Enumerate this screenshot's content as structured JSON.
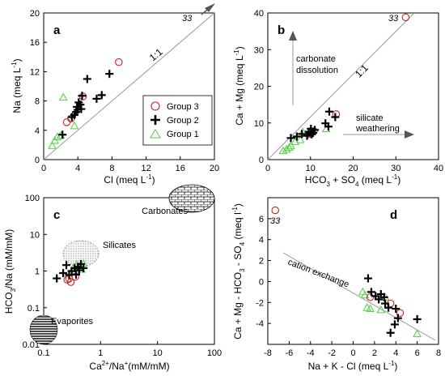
{
  "chart_data": [
    {
      "panel": "a",
      "type": "scatter",
      "xlabel": "Cl (meq L",
      "xlabel_sup": "-1",
      "xlabel_end": ")",
      "ylabel": "Na (meq L",
      "ylabel_sup": "-1",
      "ylabel_end": ")",
      "xlim": [
        0,
        20
      ],
      "ylim": [
        0,
        20
      ],
      "xticks": [
        0,
        4,
        8,
        12,
        16,
        20
      ],
      "yticks": [
        0,
        4,
        8,
        12,
        16,
        20
      ],
      "line_label": "1:1",
      "sample_label": "33",
      "series": [
        {
          "name": "Group 3",
          "marker": "circle",
          "color": "#cc2222",
          "points": [
            [
              2.7,
              5.1
            ],
            [
              4.6,
              8.6
            ],
            [
              8.8,
              13.3
            ],
            [
              3.2,
              5.6
            ]
          ]
        },
        {
          "name": "Group 2",
          "marker": "plus",
          "color": "#000000",
          "points": [
            [
              2.2,
              3.4
            ],
            [
              3.3,
              5.8
            ],
            [
              3.8,
              6.5
            ],
            [
              3.9,
              7.2
            ],
            [
              4.1,
              7.8
            ],
            [
              4.3,
              7.5
            ],
            [
              4.0,
              6.8
            ],
            [
              4.5,
              8.7
            ],
            [
              5.1,
              11.0
            ],
            [
              6.2,
              8.3
            ],
            [
              6.8,
              8.8
            ],
            [
              7.7,
              11.7
            ],
            [
              3.6,
              6.1
            ],
            [
              4.4,
              6.9
            ]
          ]
        },
        {
          "name": "Group 1",
          "marker": "triangle",
          "color": "#55cc44",
          "points": [
            [
              1.0,
              1.9
            ],
            [
              1.3,
              2.6
            ],
            [
              1.6,
              3.1
            ],
            [
              2.3,
              8.5
            ],
            [
              3.6,
              4.6
            ],
            [
              2.0,
              3.3
            ]
          ]
        }
      ],
      "legend": [
        "Group 3",
        "Group 2",
        "Group 1"
      ]
    },
    {
      "panel": "b",
      "type": "scatter",
      "xlabel": "HCO",
      "xlabel_sub1": "3",
      "xlabel_mid": " + SO",
      "xlabel_sub2": "4",
      "xlabel_end": " (meq L",
      "xlabel_sup": "-1",
      "xlabel_close": ")",
      "ylabel": "Ca + Mg  (meq L",
      "ylabel_sup": "-1",
      "ylabel_end": ")",
      "xlim": [
        0,
        40
      ],
      "ylim": [
        0,
        40
      ],
      "xticks": [
        0,
        10,
        20,
        30,
        40
      ],
      "yticks": [
        0,
        10,
        20,
        30,
        40
      ],
      "line_label": "1:1",
      "sample_label": "33",
      "annotation_carbonate_1": "carbonate",
      "annotation_carbonate_2": "dissolution",
      "annotation_silicate_1": "silicate",
      "annotation_silicate_2": "weathering",
      "series": [
        {
          "name": "Group 3",
          "marker": "circle",
          "color": "#cc2222",
          "points": [
            [
              32.3,
              38.8
            ],
            [
              16.0,
              12.4
            ],
            [
              10.8,
              7.8
            ],
            [
              9.6,
              6.9
            ]
          ]
        },
        {
          "name": "Group 2",
          "marker": "plus",
          "color": "#000000",
          "points": [
            [
              5.4,
              5.9
            ],
            [
              6.8,
              6.3
            ],
            [
              8.0,
              7.0
            ],
            [
              9.2,
              6.5
            ],
            [
              9.6,
              7.6
            ],
            [
              10.1,
              8.4
            ],
            [
              10.3,
              6.9
            ],
            [
              11.0,
              8.1
            ],
            [
              10.6,
              7.3
            ],
            [
              13.5,
              9.9
            ],
            [
              14.4,
              13.1
            ],
            [
              15.8,
              11.6
            ],
            [
              14.2,
              9.0
            ]
          ]
        },
        {
          "name": "Group 1",
          "marker": "triangle",
          "color": "#55cc44",
          "points": [
            [
              3.6,
              2.4
            ],
            [
              4.4,
              2.8
            ],
            [
              5.0,
              3.3
            ],
            [
              5.4,
              3.7
            ],
            [
              6.4,
              4.9
            ],
            [
              7.6,
              5.4
            ],
            [
              8.2,
              7.6
            ],
            [
              13.7,
              8.4
            ]
          ]
        }
      ]
    },
    {
      "panel": "c",
      "type": "scatter",
      "xscale": "log",
      "yscale": "log",
      "xlabel": "Ca",
      "xlabel_sup1": "2+",
      "xlabel_mid": "/Na",
      "xlabel_sup2": "+",
      "xlabel_end": "(mM/mM)",
      "ylabel": "HCO",
      "ylabel_sub": "3",
      "ylabel_end": "/Na (mM/mM)",
      "xlim": [
        0.1,
        100
      ],
      "ylim": [
        0.01,
        100
      ],
      "xticks": [
        "0.1",
        "1",
        "10",
        "100"
      ],
      "yticks": [
        "0.01",
        "0.1",
        "1",
        "10",
        "100"
      ],
      "region_carbonates": "Carbonates",
      "region_silicates": "Silicates",
      "region_evaporites": "Evaporites",
      "series": [
        {
          "name": "Group 3",
          "marker": "circle",
          "color": "#cc2222",
          "points": [
            [
              0.26,
              0.58
            ],
            [
              0.3,
              0.5
            ],
            [
              0.36,
              0.7
            ],
            [
              0.28,
              0.62
            ]
          ]
        },
        {
          "name": "Group 2",
          "marker": "plus",
          "color": "#000000",
          "points": [
            [
              0.17,
              0.63
            ],
            [
              0.22,
              0.88
            ],
            [
              0.25,
              1.45
            ],
            [
              0.28,
              0.78
            ],
            [
              0.31,
              1.0
            ],
            [
              0.35,
              1.2
            ],
            [
              0.37,
              0.8
            ],
            [
              0.4,
              1.3
            ],
            [
              0.42,
              1.05
            ],
            [
              0.45,
              1.55
            ],
            [
              0.5,
              1.2
            ]
          ]
        },
        {
          "name": "Group 1",
          "marker": "triangle",
          "color": "#55cc44",
          "points": [
            [
              0.33,
              1.2
            ],
            [
              0.38,
              1.5
            ],
            [
              0.42,
              1.3
            ],
            [
              0.46,
              1.1
            ],
            [
              0.5,
              1.6
            ],
            [
              0.36,
              1.0
            ]
          ]
        }
      ]
    },
    {
      "panel": "d",
      "type": "scatter",
      "xlabel": "Na + K - Cl (meq L",
      "xlabel_sup": "-1",
      "xlabel_end": ")",
      "ylabel": "Ca + Mg - HCO",
      "ylabel_sub1": "3",
      "ylabel_mid": " - SO",
      "ylabel_sub2": "4",
      "ylabel_end": " (meq l",
      "ylabel_sup": "-1",
      "ylabel_close": ")",
      "xlim": [
        -8,
        8
      ],
      "ylim": [
        -6,
        8
      ],
      "xticks": [
        -8,
        -6,
        -4,
        -2,
        0,
        2,
        4,
        6,
        8
      ],
      "yticks": [
        -4,
        -2,
        0,
        2,
        4,
        6
      ],
      "line_label": "cation exchange",
      "sample_label": "33",
      "series": [
        {
          "name": "Group 3",
          "marker": "circle",
          "color": "#cc2222",
          "points": [
            [
              -7.3,
              6.8
            ],
            [
              4.4,
              -3.0
            ],
            [
              1.6,
              -1.5
            ],
            [
              3.5,
              -2.1
            ]
          ]
        },
        {
          "name": "Group 2",
          "marker": "plus",
          "color": "#000000",
          "points": [
            [
              1.4,
              0.3
            ],
            [
              1.7,
              -1.0
            ],
            [
              2.1,
              -1.4
            ],
            [
              2.4,
              -1.7
            ],
            [
              2.6,
              -1.2
            ],
            [
              3.3,
              -2.5
            ],
            [
              3.5,
              -4.9
            ],
            [
              3.9,
              -4.1
            ],
            [
              4.2,
              -3.5
            ],
            [
              4.0,
              -2.6
            ],
            [
              6.0,
              -3.6
            ],
            [
              3.0,
              -2.1
            ],
            [
              2.9,
              -1.5
            ]
          ]
        },
        {
          "name": "Group 1",
          "marker": "triangle",
          "color": "#55cc44",
          "points": [
            [
              0.9,
              -1.0
            ],
            [
              1.1,
              -1.3
            ],
            [
              1.3,
              -2.5
            ],
            [
              1.6,
              -2.6
            ],
            [
              2.6,
              -2.7
            ],
            [
              3.0,
              -1.5
            ],
            [
              6.0,
              -5.0
            ]
          ]
        }
      ]
    }
  ]
}
